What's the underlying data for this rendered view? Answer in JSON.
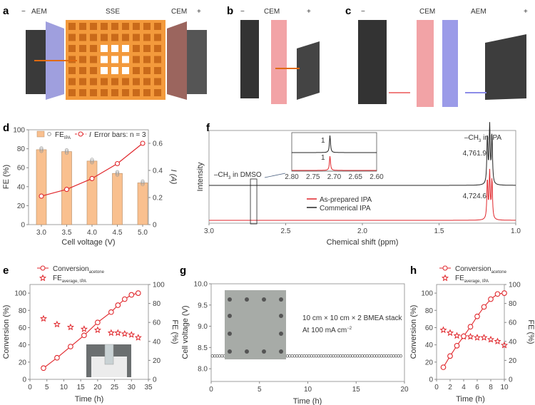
{
  "panels": {
    "a": {
      "label": "a",
      "minus": "−",
      "aem": "AEM",
      "sse": "SSE",
      "cem": "CEM",
      "plus": "+"
    },
    "b": {
      "label": "b",
      "minus": "−",
      "cem": "CEM",
      "plus": "+"
    },
    "c": {
      "label": "c",
      "minus": "−",
      "cem": "CEM",
      "aem": "AEM",
      "plus": "+"
    },
    "d": {
      "label": "d"
    },
    "e": {
      "label": "e"
    },
    "f": {
      "label": "f"
    },
    "g": {
      "label": "g"
    },
    "h": {
      "label": "h"
    }
  },
  "colors": {
    "red": "#e0262b",
    "bar": "#f9c08f",
    "bar_edge": "#b58a62",
    "black": "#222222",
    "cem": "#f2a3a6",
    "aem": "#9b9be8",
    "sse": "#f39a3c"
  },
  "chart_data": [
    {
      "id": "d",
      "type": "bar+line",
      "categories": [
        "3.0",
        "3.5",
        "4.0",
        "4.5",
        "5.0"
      ],
      "xlabel": "Cell voltage (V)",
      "ylabel": "FE (%)",
      "ylim": [
        0,
        100
      ],
      "yticks": [
        "0",
        "20",
        "40",
        "60",
        "80",
        "100"
      ],
      "y2label": "I (A)",
      "y2lim": [
        0,
        0.7
      ],
      "y2ticks": [
        "0",
        "0.2",
        "0.4",
        "0.6"
      ],
      "legend": {
        "fe": "FE",
        "fe_sub": "IPA",
        "current": "I",
        "error_note": "Error bars: n = 3"
      },
      "series": [
        {
          "name": "FE_IPA",
          "axis": "left",
          "type": "bar",
          "values": [
            79,
            77,
            67,
            54,
            44
          ]
        },
        {
          "name": "I",
          "axis": "right",
          "type": "line",
          "values": [
            0.21,
            0.26,
            0.34,
            0.45,
            0.6
          ]
        }
      ]
    },
    {
      "id": "f",
      "type": "line",
      "xlabel": "Chemical shift (ppm)",
      "ylabel": "Intensity",
      "xlim": [
        3.0,
        1.0
      ],
      "xticks": [
        "3.0",
        "2.5",
        "2.0",
        "1.5",
        "1.0"
      ],
      "annotations": {
        "ipa": "–CH",
        "ipa_sub": "3",
        "ipa_tail": " in IPA",
        "dmso": "–CH",
        "dmso_sub": "3",
        "dmso_tail": " in DMSO",
        "integral_commercial": "4,761.9",
        "integral_prepared": "4,724.6"
      },
      "series": [
        {
          "name": "As-prepared IPA",
          "color": "#e0262b",
          "peaks_ppm": [
            1.185,
            1.17,
            1.155
          ],
          "dmso_ppm": 2.71
        },
        {
          "name": "Commerical IPA",
          "color": "#222222",
          "peaks_ppm": [
            1.185,
            1.17,
            1.155
          ],
          "dmso_ppm": 2.71
        }
      ],
      "inset": {
        "xlim": [
          2.8,
          2.6
        ],
        "xticks": [
          "2.80",
          "2.75",
          "2.70",
          "2.65",
          "2.60"
        ],
        "integral_top": "1",
        "integral_bottom": "1"
      }
    },
    {
      "id": "e",
      "type": "line+scatter",
      "xlabel": "Time (h)",
      "xlim": [
        0,
        35
      ],
      "xticks": [
        "0",
        "5",
        "10",
        "15",
        "20",
        "25",
        "30",
        "35"
      ],
      "ylabel": "Conversion (%)",
      "ylim": [
        0,
        110
      ],
      "yticks": [
        "0",
        "20",
        "40",
        "60",
        "80",
        "100"
      ],
      "y2label": "FE (%)",
      "y2lim": [
        0,
        100
      ],
      "y2ticks": [
        "0",
        "20",
        "40",
        "60",
        "80",
        "100"
      ],
      "legend": {
        "conv": "Conversion",
        "conv_sub": "acetone",
        "fe": "FE",
        "fe_sub": "average, IPA"
      },
      "series": [
        {
          "name": "Conversion_acetone",
          "axis": "left",
          "x": [
            4,
            8,
            12,
            16,
            20,
            24,
            26,
            28,
            30,
            32
          ],
          "y": [
            13,
            25,
            38,
            51,
            66,
            78,
            86,
            93,
            98,
            100
          ]
        },
        {
          "name": "FE_average,IPA",
          "axis": "right",
          "x": [
            4,
            8,
            12,
            16,
            20,
            24,
            26,
            28,
            30,
            32
          ],
          "y": [
            64,
            58,
            55,
            53,
            52,
            49,
            49,
            48,
            47,
            44
          ]
        }
      ]
    },
    {
      "id": "g",
      "type": "scatter",
      "xlabel": "Time (h)",
      "xlim": [
        0,
        20
      ],
      "xticks": [
        "0",
        "5",
        "10",
        "15",
        "20"
      ],
      "ylabel": "Cell voltage (V)",
      "ylim": [
        7.7,
        10.0
      ],
      "yticks": [
        "8.0",
        "8.5",
        "9.0",
        "9.5",
        "10.0"
      ],
      "annotations": {
        "stack": "10 cm × 10 cm × 2 BMEA stack",
        "current": "At 100 mA cm",
        "current_sup": "−2"
      },
      "series": [
        {
          "x": [
            0.25,
            0.75,
            1.25,
            1.75,
            2.25,
            2.75,
            3.25,
            3.75,
            4.25,
            4.75,
            5.25,
            5.75,
            6.25,
            6.75,
            7.25,
            7.75,
            8.25,
            8.75,
            9.25,
            9.75,
            10.25,
            10.75,
            11.25,
            11.75,
            12.25,
            12.75,
            13.25,
            13.75,
            14.25,
            14.75,
            15.25,
            15.75,
            16.25,
            16.75,
            17.25,
            17.75,
            18.25,
            18.75,
            19.25,
            19.75
          ],
          "y": [
            8.3,
            8.3,
            8.3,
            8.3,
            8.3,
            8.3,
            8.3,
            8.3,
            8.3,
            8.3,
            8.3,
            8.3,
            8.3,
            8.3,
            8.3,
            8.3,
            8.3,
            8.3,
            8.3,
            8.3,
            8.3,
            8.3,
            8.3,
            8.3,
            8.3,
            8.3,
            8.3,
            8.3,
            8.3,
            8.3,
            8.3,
            8.3,
            8.3,
            8.3,
            8.3,
            8.3,
            8.3,
            8.3,
            8.3,
            8.3
          ]
        }
      ]
    },
    {
      "id": "h",
      "type": "line+scatter",
      "xlabel": "Time (h)",
      "xlim": [
        0,
        10
      ],
      "xticks": [
        "0",
        "2",
        "4",
        "6",
        "8",
        "10"
      ],
      "ylabel": "Conversion (%)",
      "ylim": [
        0,
        110
      ],
      "yticks": [
        "0",
        "20",
        "40",
        "60",
        "80",
        "100"
      ],
      "y2label": "FE (%)",
      "y2lim": [
        0,
        100
      ],
      "y2ticks": [
        "0",
        "20",
        "40",
        "60",
        "80",
        "100"
      ],
      "legend": {
        "conv": "Conversion",
        "conv_sub": "acetone",
        "fe": "FE",
        "fe_sub": "average, IPA"
      },
      "series": [
        {
          "name": "Conversion_acetone",
          "axis": "left",
          "x": [
            1,
            2,
            3,
            4,
            5,
            6,
            7,
            8,
            9,
            10
          ],
          "y": [
            14,
            27,
            39,
            50,
            61,
            73,
            84,
            93,
            99,
            100
          ]
        },
        {
          "name": "FE_average,IPA",
          "axis": "right",
          "x": [
            1,
            2,
            3,
            4,
            5,
            6,
            7,
            8,
            9,
            10
          ],
          "y": [
            52,
            49,
            46,
            45,
            45,
            44,
            44,
            42,
            40,
            36
          ]
        }
      ]
    }
  ]
}
